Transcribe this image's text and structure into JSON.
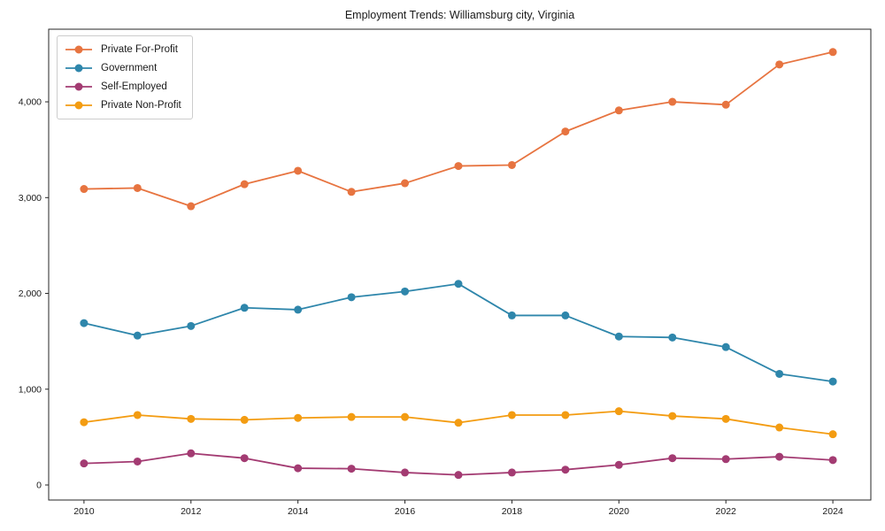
{
  "title": "Employment Trends: Williamsburg city, Virginia",
  "chart_data": {
    "type": "line",
    "title": "Employment Trends: Williamsburg city, Virginia",
    "xlabel": "",
    "ylabel": "",
    "x": [
      2010,
      2011,
      2012,
      2013,
      2014,
      2015,
      2016,
      2017,
      2018,
      2019,
      2020,
      2021,
      2022,
      2023,
      2024
    ],
    "series": [
      {
        "name": "Private For-Profit",
        "color": "#E77440",
        "values": [
          3090,
          3100,
          2910,
          3140,
          3280,
          3060,
          3150,
          3330,
          3340,
          3690,
          3910,
          4000,
          3970,
          4390,
          4520
        ]
      },
      {
        "name": "Government",
        "color": "#2E86AB",
        "values": [
          1690,
          1560,
          1660,
          1850,
          1830,
          1960,
          2020,
          2100,
          1770,
          1770,
          1550,
          1540,
          1440,
          1160,
          1080
        ]
      },
      {
        "name": "Self-Employed",
        "color": "#A33B72",
        "values": [
          225,
          245,
          330,
          280,
          175,
          170,
          130,
          105,
          130,
          160,
          210,
          280,
          270,
          295,
          260
        ]
      },
      {
        "name": "Private Non-Profit",
        "color": "#F39C12",
        "values": [
          655,
          730,
          690,
          680,
          700,
          710,
          710,
          650,
          730,
          730,
          770,
          720,
          690,
          600,
          530
        ]
      }
    ],
    "xticks": [
      2010,
      2012,
      2014,
      2016,
      2018,
      2020,
      2022,
      2024
    ],
    "xtick_labels": [
      "2010",
      "2012",
      "2014",
      "2016",
      "2018",
      "2020",
      "2022",
      "2024"
    ],
    "yticks": [
      0,
      1000,
      2000,
      3000,
      4000
    ],
    "ytick_labels": [
      "0",
      "1,000",
      "2,000",
      "3,000",
      "4,000"
    ],
    "xlim": [
      2009.34,
      2024.71
    ],
    "ylim": [
      -157,
      4758
    ],
    "grid": false,
    "legend_position": "upper left"
  }
}
